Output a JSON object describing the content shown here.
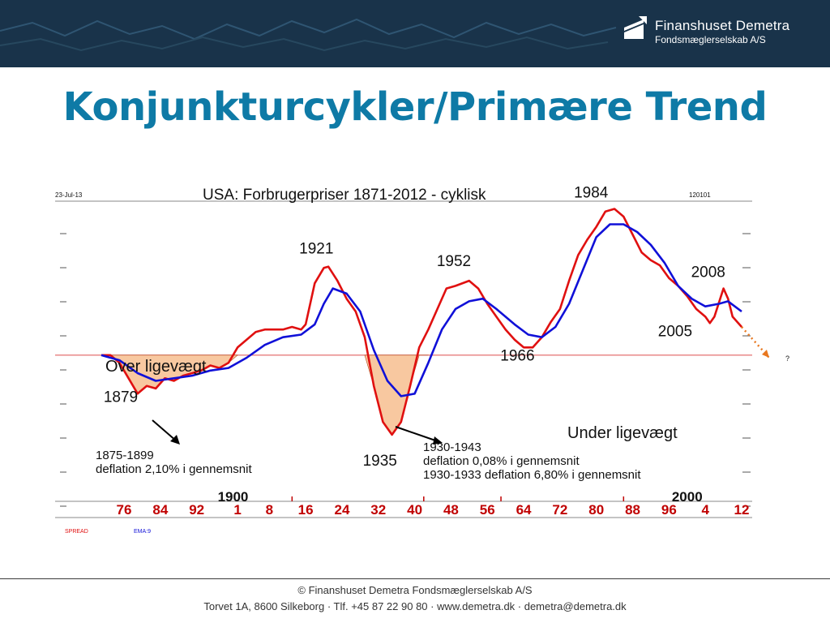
{
  "header": {
    "brand_name": "Finanshuset Demetra",
    "brand_sub": "Fondsmæglerselskab A/S",
    "background": "#19334a"
  },
  "slide": {
    "title": "Konjunkturcykler/Primære Trend",
    "title_color": "#0e7aa6"
  },
  "chart_data": {
    "type": "line",
    "title": "USA: Forbrugerpriser 1871-2012 - cyklisk",
    "date_label": "23-Jul-13",
    "code_label": "120101",
    "x_range": [
      1871,
      2012
    ],
    "y_range": [
      -5,
      6
    ],
    "baseline": 0,
    "baseline_color": "#e06060",
    "century_labels": [
      {
        "year": 1900,
        "label": "1900"
      },
      {
        "year": 2000,
        "label": "2000"
      }
    ],
    "tick_labels": [
      {
        "year": 1876,
        "label": "76"
      },
      {
        "year": 1884,
        "label": "84"
      },
      {
        "year": 1892,
        "label": "92"
      },
      {
        "year": 1901,
        "label": "1"
      },
      {
        "year": 1908,
        "label": "8"
      },
      {
        "year": 1916,
        "label": "16"
      },
      {
        "year": 1924,
        "label": "24"
      },
      {
        "year": 1932,
        "label": "32"
      },
      {
        "year": 1940,
        "label": "40"
      },
      {
        "year": 1948,
        "label": "48"
      },
      {
        "year": 1956,
        "label": "56"
      },
      {
        "year": 1964,
        "label": "64"
      },
      {
        "year": 1972,
        "label": "72"
      },
      {
        "year": 1980,
        "label": "80"
      },
      {
        "year": 1988,
        "label": "88"
      },
      {
        "year": 1996,
        "label": "96"
      },
      {
        "year": 2004,
        "label": "4"
      },
      {
        "year": 2012,
        "label": "12"
      }
    ],
    "tick_color": "#c00000",
    "series": [
      {
        "name": "SPREAD",
        "color": "#e01010",
        "points": [
          [
            1871,
            0.0
          ],
          [
            1873,
            0.0
          ],
          [
            1875,
            -0.3
          ],
          [
            1877,
            -0.9
          ],
          [
            1879,
            -1.5
          ],
          [
            1881,
            -1.2
          ],
          [
            1883,
            -1.3
          ],
          [
            1885,
            -0.9
          ],
          [
            1887,
            -1.0
          ],
          [
            1889,
            -0.8
          ],
          [
            1891,
            -0.7
          ],
          [
            1893,
            -0.6
          ],
          [
            1895,
            -0.4
          ],
          [
            1897,
            -0.5
          ],
          [
            1899,
            -0.3
          ],
          [
            1901,
            0.3
          ],
          [
            1903,
            0.6
          ],
          [
            1905,
            0.9
          ],
          [
            1907,
            1.0
          ],
          [
            1909,
            1.0
          ],
          [
            1911,
            1.0
          ],
          [
            1913,
            1.1
          ],
          [
            1915,
            1.0
          ],
          [
            1916,
            1.2
          ],
          [
            1918,
            2.8
          ],
          [
            1920,
            3.4
          ],
          [
            1921,
            3.45
          ],
          [
            1923,
            2.9
          ],
          [
            1925,
            2.2
          ],
          [
            1927,
            1.7
          ],
          [
            1929,
            0.7
          ],
          [
            1931,
            -1.2
          ],
          [
            1933,
            -2.6
          ],
          [
            1935,
            -3.1
          ],
          [
            1937,
            -2.6
          ],
          [
            1939,
            -1.2
          ],
          [
            1941,
            0.3
          ],
          [
            1943,
            1.0
          ],
          [
            1945,
            1.8
          ],
          [
            1947,
            2.6
          ],
          [
            1949,
            2.7
          ],
          [
            1952,
            2.9
          ],
          [
            1954,
            2.6
          ],
          [
            1956,
            2.0
          ],
          [
            1958,
            1.5
          ],
          [
            1960,
            1.0
          ],
          [
            1962,
            0.6
          ],
          [
            1964,
            0.3
          ],
          [
            1966,
            0.3
          ],
          [
            1968,
            0.7
          ],
          [
            1970,
            1.3
          ],
          [
            1972,
            1.8
          ],
          [
            1974,
            2.9
          ],
          [
            1976,
            3.9
          ],
          [
            1978,
            4.5
          ],
          [
            1980,
            5.0
          ],
          [
            1982,
            5.6
          ],
          [
            1984,
            5.7
          ],
          [
            1986,
            5.4
          ],
          [
            1988,
            4.7
          ],
          [
            1990,
            4.0
          ],
          [
            1992,
            3.7
          ],
          [
            1994,
            3.5
          ],
          [
            1996,
            3.0
          ],
          [
            1998,
            2.7
          ],
          [
            2000,
            2.3
          ],
          [
            2002,
            1.8
          ],
          [
            2004,
            1.5
          ],
          [
            2005,
            1.25
          ],
          [
            2006,
            1.5
          ],
          [
            2008,
            2.6
          ],
          [
            2009,
            2.2
          ],
          [
            2010,
            1.5
          ],
          [
            2012,
            1.1
          ]
        ]
      },
      {
        "name": "EMA:9",
        "color": "#1010d8",
        "points": [
          [
            1871,
            0.0
          ],
          [
            1875,
            -0.2
          ],
          [
            1879,
            -0.7
          ],
          [
            1883,
            -1.0
          ],
          [
            1887,
            -0.9
          ],
          [
            1891,
            -0.8
          ],
          [
            1895,
            -0.6
          ],
          [
            1899,
            -0.5
          ],
          [
            1903,
            -0.1
          ],
          [
            1907,
            0.4
          ],
          [
            1911,
            0.7
          ],
          [
            1915,
            0.8
          ],
          [
            1918,
            1.2
          ],
          [
            1920,
            2.0
          ],
          [
            1922,
            2.6
          ],
          [
            1925,
            2.4
          ],
          [
            1928,
            1.7
          ],
          [
            1931,
            0.2
          ],
          [
            1934,
            -1.0
          ],
          [
            1937,
            -1.6
          ],
          [
            1940,
            -1.5
          ],
          [
            1943,
            -0.3
          ],
          [
            1946,
            1.0
          ],
          [
            1949,
            1.8
          ],
          [
            1952,
            2.1
          ],
          [
            1955,
            2.2
          ],
          [
            1958,
            1.8
          ],
          [
            1962,
            1.2
          ],
          [
            1965,
            0.8
          ],
          [
            1968,
            0.7
          ],
          [
            1971,
            1.1
          ],
          [
            1974,
            2.0
          ],
          [
            1977,
            3.3
          ],
          [
            1980,
            4.6
          ],
          [
            1983,
            5.1
          ],
          [
            1986,
            5.1
          ],
          [
            1989,
            4.8
          ],
          [
            1992,
            4.3
          ],
          [
            1995,
            3.6
          ],
          [
            1998,
            2.7
          ],
          [
            2001,
            2.2
          ],
          [
            2004,
            1.9
          ],
          [
            2007,
            2.0
          ],
          [
            2009,
            2.1
          ],
          [
            2012,
            1.7
          ]
        ]
      }
    ],
    "annotations": [
      {
        "label": "1879",
        "year": 1879,
        "value": -1.5
      },
      {
        "label": "1921",
        "year": 1921,
        "value": 3.45
      },
      {
        "label": "1935",
        "year": 1935,
        "value": -3.1
      },
      {
        "label": "1952",
        "year": 1952,
        "value": 2.9
      },
      {
        "label": "1966",
        "year": 1966,
        "value": 0.3
      },
      {
        "label": "1984",
        "year": 1984,
        "value": 5.7
      },
      {
        "label": "2005",
        "year": 2005,
        "value": 1.25
      },
      {
        "label": "2008",
        "year": 2008,
        "value": 2.6
      }
    ],
    "text_notes": {
      "over": "Over ligevægt",
      "under": "Under ligevægt",
      "range_1875": "1875-1899",
      "defl_1875": "deflation 2,10% i gennemsnit",
      "range_1930": "1930-1943",
      "defl_1930a": "deflation 0,08% i gennemsnit",
      "defl_1930b": "1930-1933 deflation 6,80% i gennemsnit",
      "question": "?"
    },
    "legend": {
      "spread": "SPREAD",
      "ema": "EMA:9"
    },
    "shaded_periods": [
      [
        1873,
        1901
      ],
      [
        1929,
        1943
      ]
    ],
    "shade_color": "#f8c8a0",
    "projection_color": "#e87820"
  },
  "footer": {
    "line1": "© Finanshuset Demetra Fondsmæglerselskab A/S",
    "line2": "Torvet 1A, 8600 Silkeborg · Tlf. +45 87 22 90 80 · www.demetra.dk · demetra@demetra.dk"
  }
}
